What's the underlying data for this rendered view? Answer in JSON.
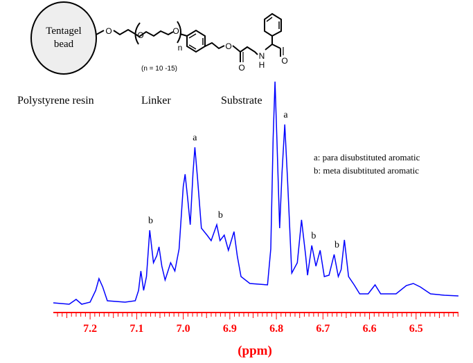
{
  "structure": {
    "bead_label_line1": "Tentagel",
    "bead_label_line2": "bead",
    "atom_O": "O",
    "atom_N": "N",
    "atom_H": "H",
    "repeat_n": "n",
    "repeat_range": "(n = 10 -15)",
    "section_labels": [
      "Polystyrene resin",
      "Linker",
      "Substrate"
    ]
  },
  "legend": {
    "a": "a: para disubstituted aromatic",
    "b": "b: meta disubtituted aromatic"
  },
  "colors": {
    "spectrum": "#0000ff",
    "axis": "#ff0000",
    "text": "#000000"
  },
  "chart_data": {
    "type": "line",
    "title": "",
    "xlabel": "(ppm)",
    "ylabel": "",
    "xlim": [
      7.279,
      6.409
    ],
    "x_reversed": true,
    "grid": false,
    "x_ticks": [
      7.2,
      7.1,
      7.0,
      6.9,
      6.8,
      6.7,
      6.6,
      6.5
    ],
    "x_tick_labels": [
      "7.2",
      "7.1",
      "7.0",
      "6.9",
      "6.8",
      "6.7",
      "6.6",
      "6.5"
    ],
    "series": [
      {
        "x": [
          7.279,
          7.245,
          7.23,
          7.218,
          7.2,
          7.188,
          7.181,
          7.173,
          7.163,
          7.125,
          7.103,
          7.096,
          7.091,
          7.085,
          7.079,
          7.072,
          7.064,
          7.057,
          7.052,
          7.046,
          7.039,
          7.027,
          7.018,
          7.009,
          7.0,
          6.996,
          6.99,
          6.985,
          6.979,
          6.975,
          6.969,
          6.961,
          6.949,
          6.94,
          6.928,
          6.921,
          6.912,
          6.903,
          6.891,
          6.884,
          6.876,
          6.857,
          6.819,
          6.812,
          6.807,
          6.803,
          6.799,
          6.793,
          6.788,
          6.782,
          6.776,
          6.767,
          6.755,
          6.746,
          6.737,
          6.733,
          6.724,
          6.715,
          6.706,
          6.697,
          6.687,
          6.676,
          6.667,
          6.661,
          6.654,
          6.645,
          6.633,
          6.621,
          6.603,
          6.588,
          6.576,
          6.543,
          6.521,
          6.506,
          6.491,
          6.469,
          6.439,
          6.409
        ],
        "y": [
          4,
          2,
          9,
          2,
          5,
          22,
          39,
          27,
          7,
          5,
          7,
          22,
          50,
          22,
          42,
          109,
          62,
          72,
          85,
          57,
          37,
          62,
          50,
          82,
          172,
          190,
          152,
          117,
          192,
          229,
          182,
          112,
          102,
          94,
          117,
          94,
          102,
          80,
          107,
          72,
          42,
          32,
          30,
          82,
          242,
          324,
          242,
          112,
          192,
          262,
          182,
          47,
          62,
          124,
          72,
          44,
          87,
          57,
          80,
          42,
          44,
          74,
          42,
          52,
          95,
          42,
          30,
          17,
          17,
          30,
          17,
          17,
          29,
          32,
          27,
          17,
          15,
          14
        ]
      }
    ],
    "annotations": [
      {
        "text": "b",
        "ppm": 7.07
      },
      {
        "text": "a",
        "ppm": 6.975
      },
      {
        "text": "b",
        "ppm": 6.92
      },
      {
        "text": "a",
        "ppm": 6.78
      },
      {
        "text": "b",
        "ppm": 6.72
      },
      {
        "text": "b",
        "ppm": 6.67
      }
    ]
  }
}
